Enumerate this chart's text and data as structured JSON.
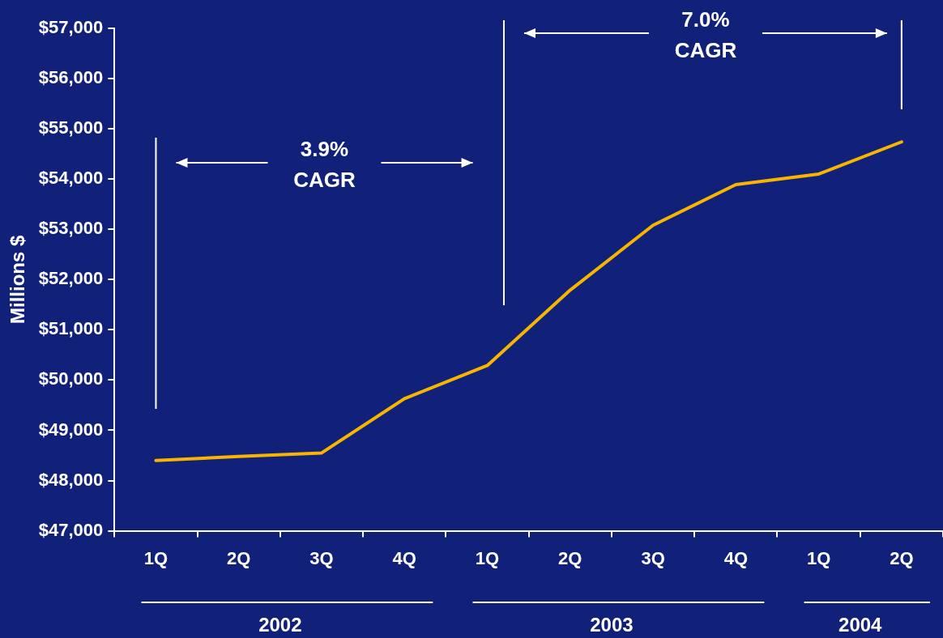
{
  "chart_data": {
    "type": "line",
    "ylabel": "Millions $",
    "categories": [
      "1Q",
      "2Q",
      "3Q",
      "4Q",
      "1Q",
      "2Q",
      "3Q",
      "4Q",
      "1Q",
      "2Q"
    ],
    "series": [
      {
        "color": "#f7b500",
        "values": [
          48400,
          48480,
          48550,
          49630,
          50290,
          51790,
          53080,
          53890,
          54100,
          54740
        ]
      }
    ],
    "ylim": [
      47000,
      57000
    ],
    "yticks": [
      {
        "value": 47000,
        "label": "$47,000"
      },
      {
        "value": 48000,
        "label": "$48,000"
      },
      {
        "value": 49000,
        "label": "$49,000"
      },
      {
        "value": 50000,
        "label": "$50,000"
      },
      {
        "value": 51000,
        "label": "$51,000"
      },
      {
        "value": 52000,
        "label": "$52,000"
      },
      {
        "value": 53000,
        "label": "$53,000"
      },
      {
        "value": 54000,
        "label": "$54,000"
      },
      {
        "value": 55000,
        "label": "$55,000"
      },
      {
        "value": 56000,
        "label": "$56,000"
      },
      {
        "value": 57000,
        "label": "$57,000"
      }
    ],
    "annotations": [
      "3.9% CAGR",
      "7.0% CAGR",
      "2002",
      "2003",
      "2004"
    ],
    "grid": false,
    "legend": false,
    "marker": "none",
    "line_style": "solid"
  }
}
